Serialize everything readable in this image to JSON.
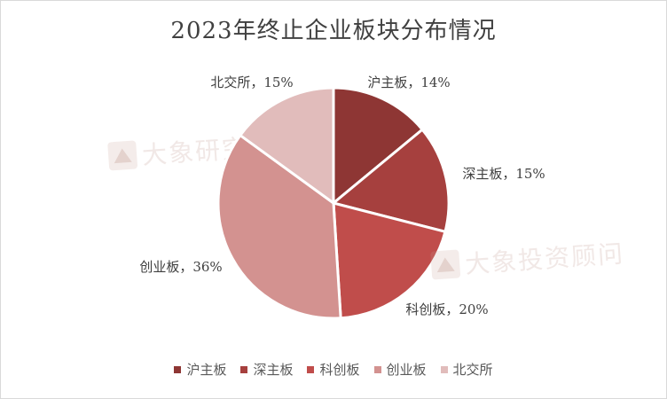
{
  "chart_data": {
    "type": "pie",
    "title": "2023年终止企业板块分布情况",
    "slices": [
      {
        "label": "沪主板",
        "value": 14,
        "display": "沪主板，14%",
        "color": "#8e3634"
      },
      {
        "label": "深主板",
        "value": 15,
        "display": "深主板，15%",
        "color": "#a6403e"
      },
      {
        "label": "科创板",
        "value": 20,
        "display": "科创板，20%",
        "color": "#c04d4b"
      },
      {
        "label": "创业板",
        "value": 36,
        "display": "创业板，36%",
        "color": "#d39290"
      },
      {
        "label": "北交所",
        "value": 15,
        "display": "北交所，15%",
        "color": "#e1bcbb"
      }
    ],
    "legend_position": "bottom"
  },
  "watermarks": {
    "upper": "大象研究院",
    "lower": "大象投资顾问"
  }
}
